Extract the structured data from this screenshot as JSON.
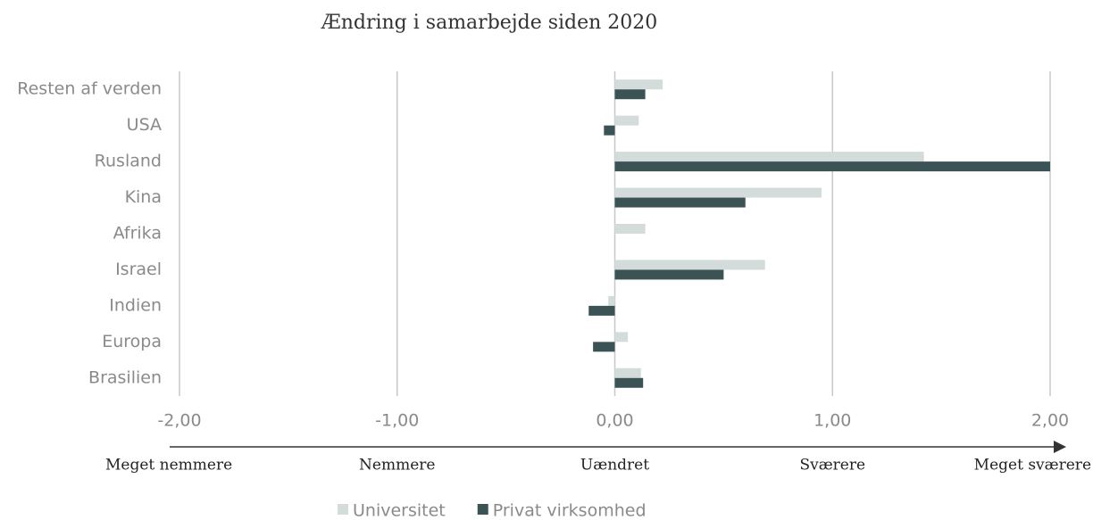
{
  "chart_data": {
    "type": "hbar",
    "title": "Ændring i samarbejde siden 2020",
    "categories": [
      "Resten af verden",
      "USA",
      "Rusland",
      "Kina",
      "Afrika",
      "Israel",
      "Indien",
      "Europa",
      "Brasilien"
    ],
    "series": [
      {
        "name": "Universitet",
        "color": "#d3dbdb",
        "values": [
          0.22,
          0.11,
          1.42,
          0.95,
          0.14,
          0.69,
          -0.03,
          0.06,
          0.12
        ]
      },
      {
        "name": "Privat virksomhed",
        "color": "#3c5356",
        "values": [
          0.14,
          -0.05,
          2.0,
          0.6,
          0,
          0.5,
          -0.12,
          -0.1,
          0.13
        ]
      }
    ],
    "xlim": [
      -2,
      2
    ],
    "xticks": [
      {
        "value": -2,
        "label": "-2,00"
      },
      {
        "value": -1,
        "label": "-1,00"
      },
      {
        "value": 0,
        "label": "0,00"
      },
      {
        "value": 1,
        "label": "1,00"
      },
      {
        "value": 2,
        "label": "2,00"
      }
    ],
    "scale_labels": [
      "Meget nemmere",
      "Nemmere",
      "Uændret",
      "Sværere",
      "Meget sværere"
    ],
    "grid": true,
    "legend": "bottom"
  }
}
